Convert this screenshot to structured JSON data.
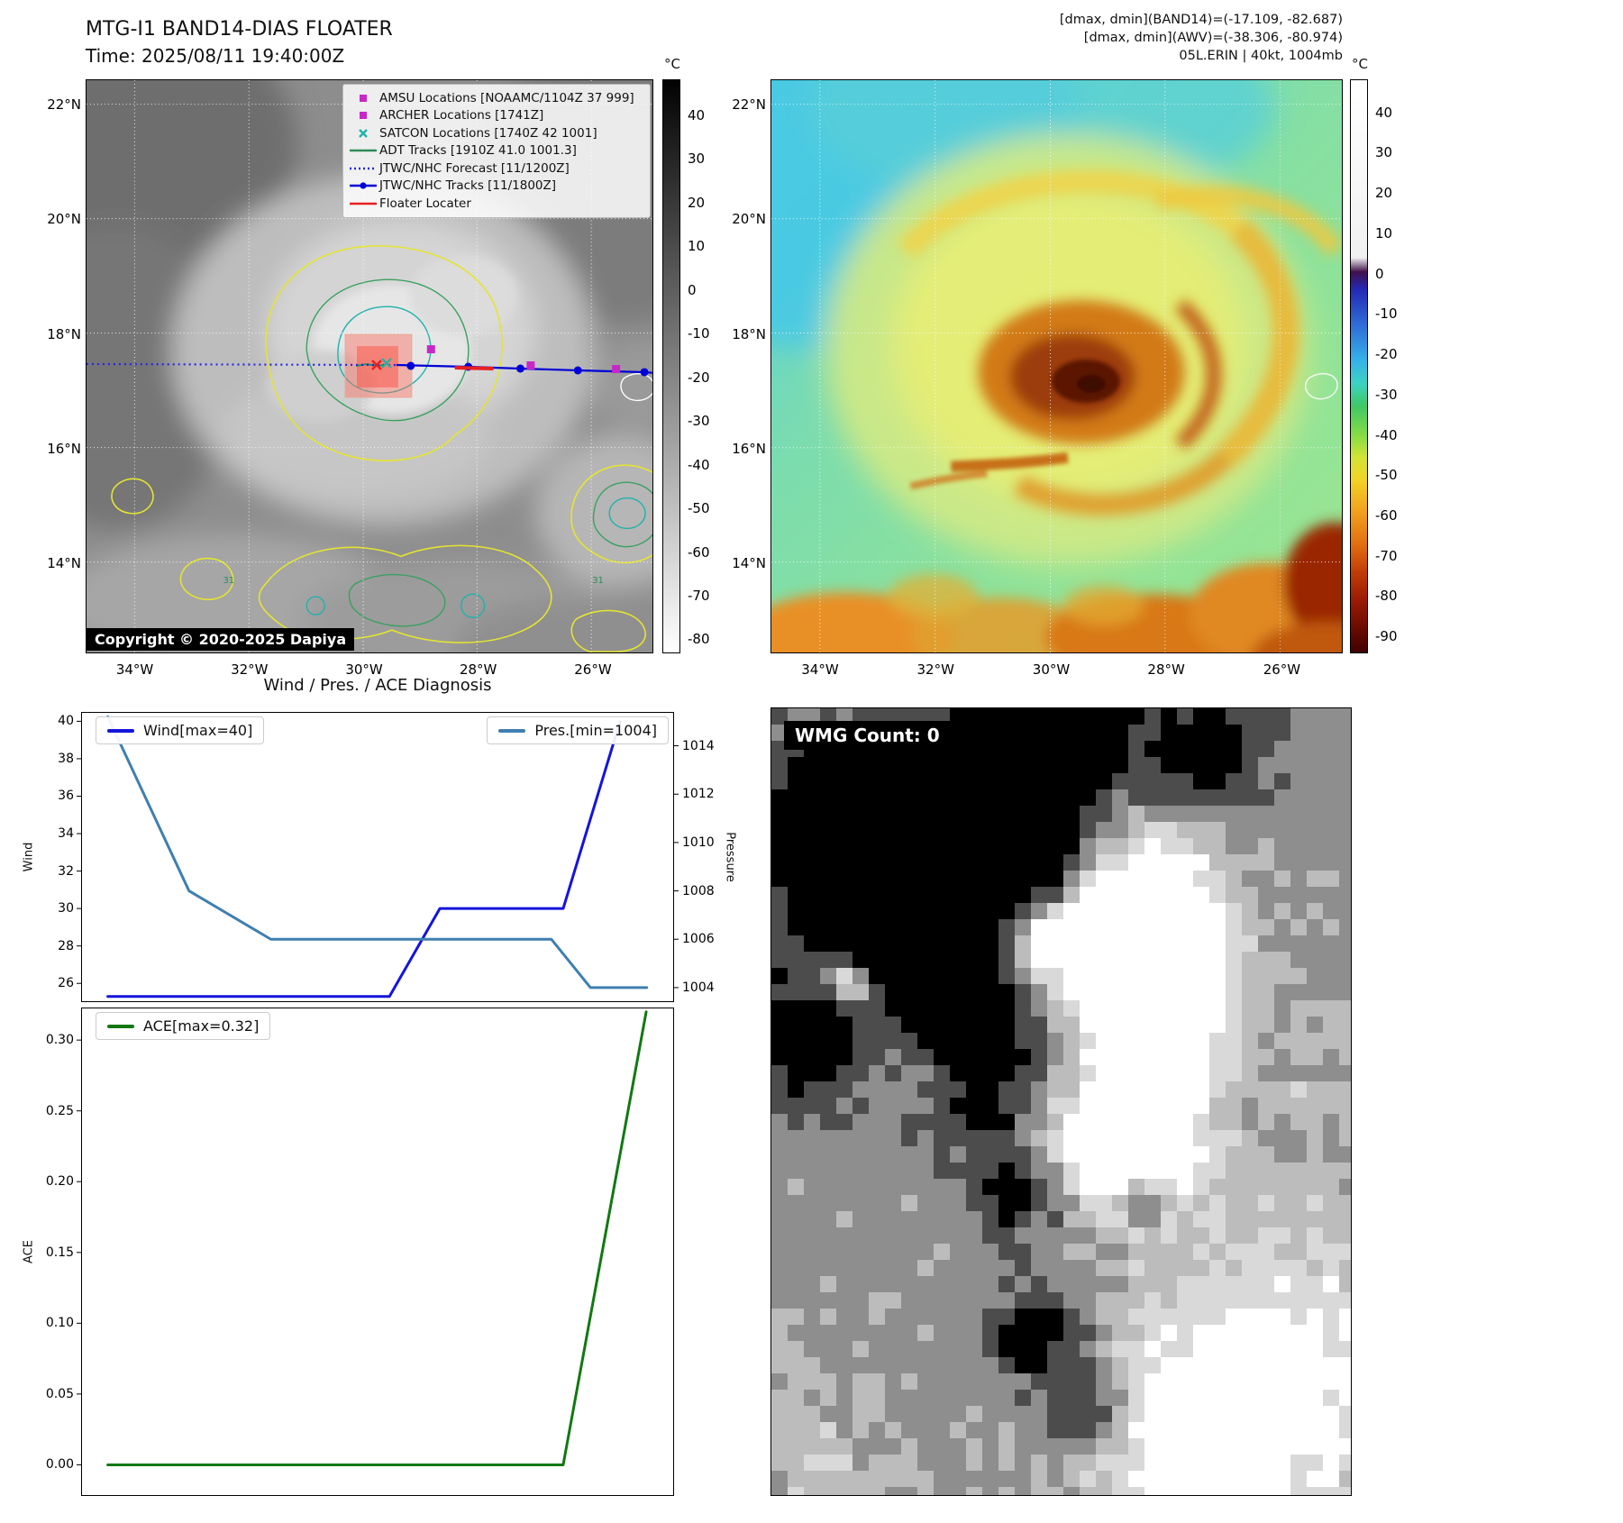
{
  "band14": {
    "title": "MTG-I1 BAND14-DIAS FLOATER",
    "subtitle": "Time: 2025/08/11 19:40:00Z",
    "copyright": "Copyright © 2020-2025 Dapiya",
    "legend": [
      {
        "marker": "amsu-square",
        "color": "#c926c9",
        "label": "AMSU Locations [NOAAMC/1104Z 37 999]"
      },
      {
        "marker": "archer-square",
        "color": "#c926c9",
        "label": "ARCHER Locations [1741Z]"
      },
      {
        "marker": "satcon-x",
        "color": "#1fb2aa",
        "label": "SATCON Locations [1740Z 42 1001]"
      },
      {
        "marker": "adt-line",
        "color": "#2e8b57",
        "label": "ADT Tracks [1910Z 41.0 1001.3]"
      },
      {
        "marker": "forecast-dotted-line",
        "color": "#2525e8",
        "label": "JTWC/NHC Forecast [11/1200Z]"
      },
      {
        "marker": "track-line-dot",
        "color": "#0000d6",
        "label": "JTWC/NHC Tracks [11/1800Z]"
      },
      {
        "marker": "floater-line",
        "color": "#e82020",
        "label": "Floater Locater"
      }
    ],
    "lat_ticks": [
      "22°N",
      "20°N",
      "18°N",
      "16°N",
      "14°N"
    ],
    "lon_ticks": [
      "34°W",
      "32°W",
      "30°W",
      "28°W",
      "26°W"
    ],
    "contour_labels": [
      "31",
      "31"
    ],
    "colorbar": {
      "unit": "°C",
      "ticks": [
        40,
        30,
        20,
        10,
        0,
        -10,
        -20,
        -30,
        -40,
        -50,
        -60,
        -70,
        -80
      ],
      "range": [
        48,
        -83
      ]
    }
  },
  "awv": {
    "header_lines": [
      "[dmax, dmin](BAND14)=(-17.109, -82.687)",
      "[dmax, dmin](AWV)=(-38.306, -80.974)",
      "05L.ERIN | 40kt, 1004mb"
    ],
    "lat_ticks": [
      "22°N",
      "20°N",
      "18°N",
      "16°N",
      "14°N"
    ],
    "lon_ticks": [
      "34°W",
      "32°W",
      "30°W",
      "28°W",
      "26°W"
    ],
    "colorbar": {
      "unit": "°C",
      "ticks": [
        40,
        30,
        20,
        10,
        0,
        -10,
        -20,
        -30,
        -40,
        -50,
        -60,
        -70,
        -80,
        -90
      ],
      "range": [
        48,
        -94
      ]
    }
  },
  "wmg": {
    "label": "WMG Count: 0"
  },
  "chart_data": [
    {
      "type": "line",
      "title": "Wind / Pres. / ACE Diagnosis",
      "xlim": [
        0,
        1
      ],
      "series": [
        {
          "name": "Wind[max=40]",
          "axis": "left",
          "color": "#1414dc",
          "x": [
            0.045,
            0.52,
            0.605,
            0.813,
            0.909
          ],
          "y": [
            25.3,
            25.3,
            30,
            30,
            40
          ]
        },
        {
          "name": "Pres.[min=1004]",
          "axis": "right",
          "color": "#3f7fb0",
          "x": [
            0.045,
            0.182,
            0.32,
            0.793,
            0.859,
            0.954
          ],
          "y": [
            1015.2,
            1008,
            1006,
            1006,
            1004,
            1004
          ]
        }
      ],
      "left_axis": {
        "label": "Wind",
        "ticks": [
          26,
          28,
          30,
          32,
          34,
          36,
          38,
          40
        ],
        "lim": [
          25.0,
          40.5
        ],
        "decimals": 0
      },
      "right_axis": {
        "label": "Pressure",
        "ticks": [
          1004,
          1006,
          1008,
          1010,
          1012,
          1014
        ],
        "lim": [
          1003.4,
          1015.4
        ],
        "decimals": 0
      }
    },
    {
      "type": "line",
      "title": "",
      "xlim": [
        0,
        1
      ],
      "series": [
        {
          "name": "ACE[max=0.32]",
          "axis": "left",
          "color": "#127812",
          "x": [
            0.045,
            0.813,
            0.953
          ],
          "y": [
            0,
            0,
            0.32
          ]
        }
      ],
      "left_axis": {
        "label": "ACE",
        "ticks": [
          0,
          0.05,
          0.1,
          0.15,
          0.2,
          0.25,
          0.3
        ],
        "lim": [
          -0.022,
          0.323
        ],
        "decimals": 2
      }
    }
  ]
}
